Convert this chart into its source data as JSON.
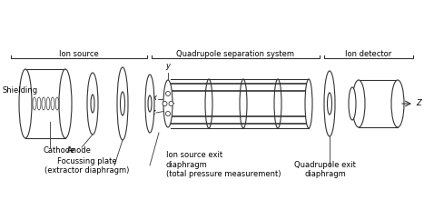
{
  "bg_color": "#ffffff",
  "line_color": "#333333",
  "text_color": "#000000",
  "labels": {
    "shielding": "Shielding",
    "cathode": "Cathode",
    "anode": "Anode",
    "focussing": "Focussing plate\n(extractor diaphragm)",
    "ion_exit": "Ion source exit\ndiaphragm\n(total pressure measurement)",
    "quad_exit": "Quadrupole exit\ndiaphragm",
    "ion_source": "Ion source",
    "quad_sep": "Quadrupole separation system",
    "ion_det": "Ion detector"
  },
  "font_size": 6.0
}
